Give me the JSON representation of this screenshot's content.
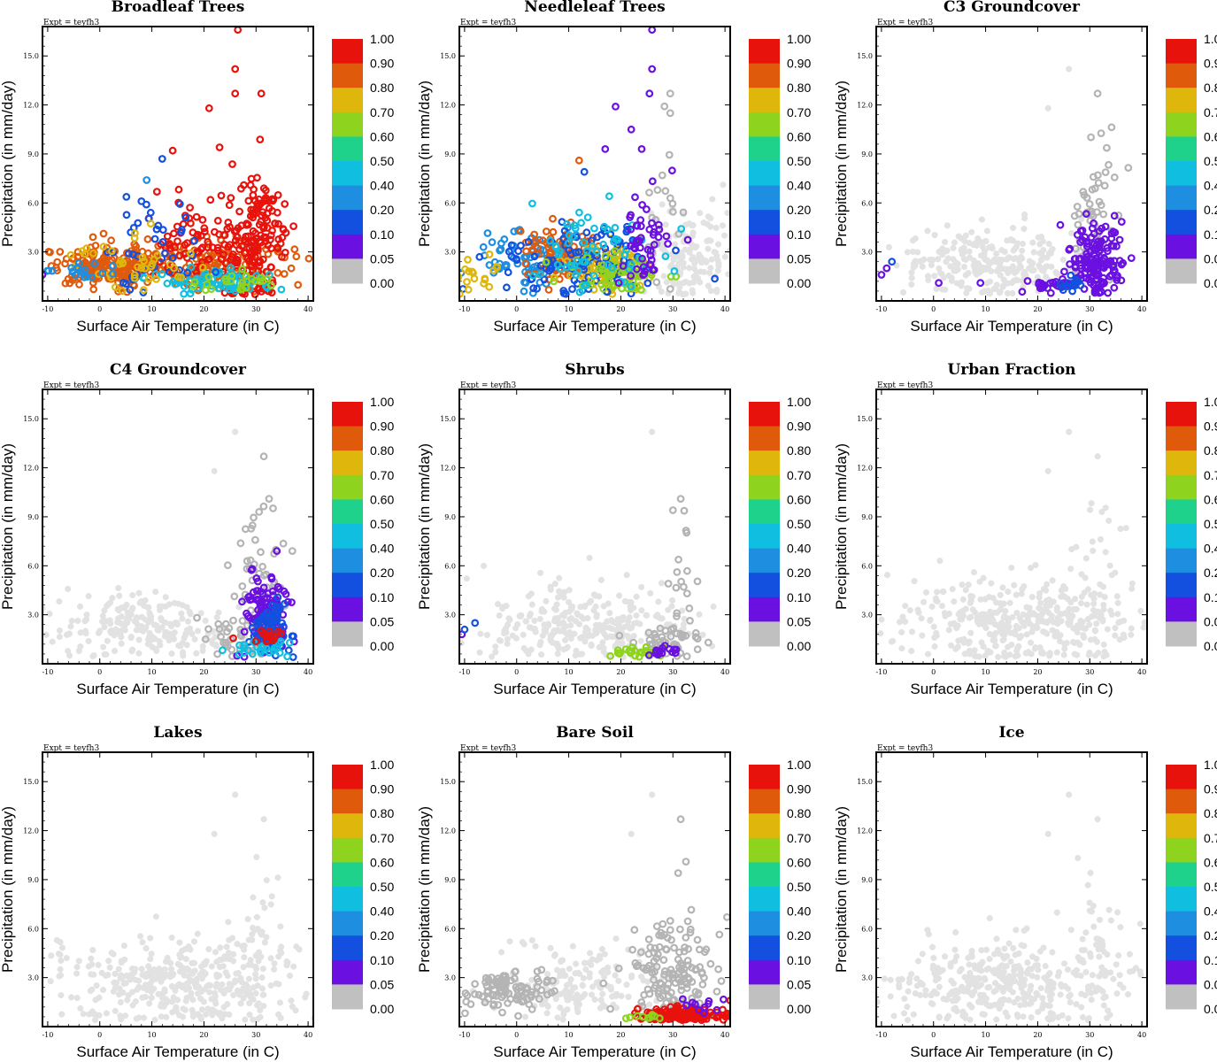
{
  "figure": {
    "expt_label": "Expt = teyfh3",
    "xlabel": "Surface Air Temperature (in C)",
    "ylabel": "Precipitation (in mm/day)",
    "x_ticks": [
      "-10",
      "0",
      "10",
      "20",
      "30",
      "40"
    ],
    "y_ticks": [
      "3.0",
      "6.0",
      "9.0",
      "12.0",
      "15.0"
    ],
    "xlim": [
      -11,
      41
    ],
    "ylim": [
      0,
      16.8
    ],
    "colorbar_labels": [
      "1.00",
      "0.90",
      "0.80",
      "0.70",
      "0.60",
      "0.50",
      "0.40",
      "0.20",
      "0.10",
      "0.05",
      "0.00"
    ],
    "colorbar_colors": [
      "#e8120c",
      "#e05a0c",
      "#dfb70c",
      "#8ed41e",
      "#1ed28c",
      "#10bfe0",
      "#1e8ee0",
      "#1450e0",
      "#6a10e0",
      "#c0c0c0"
    ],
    "zero_color_light": "#e2e2e2",
    "zero_color_dark": "#b4b4b4"
  },
  "chart_data": [
    {
      "type": "scatter",
      "title": "Broadleaf Trees",
      "xlabel": "Surface Air Temperature (in C)",
      "ylabel": "Precipitation (in mm/day)",
      "xlim": [
        -11,
        41
      ],
      "ylim": [
        0,
        16.8
      ],
      "clusters": [
        {
          "cx": 2,
          "cy": 2.1,
          "sx": 6,
          "sy": 0.6,
          "n": 200,
          "color": "#e05a0c"
        },
        {
          "cx": 22,
          "cy": 2.3,
          "sx": 8,
          "sy": 0.9,
          "n": 150,
          "color": "#e05a0c"
        },
        {
          "cx": 30,
          "cy": 3.5,
          "sx": 3,
          "sy": 2.0,
          "n": 180,
          "color": "#e8120c"
        },
        {
          "cx": 17,
          "cy": 3.5,
          "sx": 4,
          "sy": 1.3,
          "n": 70,
          "color": "#e8120c"
        },
        {
          "cx": 22,
          "cy": 1.2,
          "sx": 6,
          "sy": 0.4,
          "n": 70,
          "color": "#10bfe0"
        },
        {
          "cx": 10,
          "cy": 3.2,
          "sx": 5,
          "sy": 1.4,
          "n": 40,
          "color": "#1450e0"
        },
        {
          "cx": 6,
          "cy": 2.2,
          "sx": 6,
          "sy": 0.9,
          "n": 40,
          "color": "#dfb70c"
        },
        {
          "cx": -5,
          "cy": 1.8,
          "sx": 4,
          "sy": 0.3,
          "n": 20,
          "color": "#1e8ee0"
        },
        {
          "cx": 25,
          "cy": 1.0,
          "sx": 5,
          "sy": 0.3,
          "n": 25,
          "color": "#8ed41e"
        }
      ],
      "points": [
        {
          "x": 26.5,
          "y": 16.6,
          "color": "#e8120c"
        },
        {
          "x": 26,
          "y": 14.2,
          "color": "#e8120c"
        },
        {
          "x": 26,
          "y": 12.7,
          "color": "#e8120c"
        },
        {
          "x": 31,
          "y": 12.7,
          "color": "#e8120c"
        },
        {
          "x": 21,
          "y": 11.8,
          "color": "#e8120c"
        },
        {
          "x": 23,
          "y": 9.4,
          "color": "#e8120c"
        },
        {
          "x": 14,
          "y": 9.2,
          "color": "#e8120c"
        },
        {
          "x": 12,
          "y": 8.7,
          "color": "#1450e0"
        },
        {
          "x": 9,
          "y": 7.4,
          "color": "#1e8ee0"
        },
        {
          "x": 8,
          "y": 6.1,
          "color": "#1450e0"
        },
        {
          "x": -11,
          "y": 1.6,
          "color": "#6a10e0"
        }
      ]
    },
    {
      "type": "scatter",
      "title": "Needleleaf Trees",
      "xlabel": "Surface Air Temperature (in C)",
      "ylabel": "Precipitation (in mm/day)",
      "xlim": [
        -11,
        41
      ],
      "ylim": [
        0,
        16.8
      ],
      "clusters": [
        {
          "cx": 33,
          "cy": 2.5,
          "sx": 4,
          "sy": 1.5,
          "n": 150,
          "color": "#e2e2e2"
        },
        {
          "cx": 28,
          "cy": 5.5,
          "sx": 2,
          "sy": 2.5,
          "n": 20,
          "color": "#b4b4b4"
        },
        {
          "cx": 5,
          "cy": 2.5,
          "sx": 6,
          "sy": 1.0,
          "n": 100,
          "color": "#1e8ee0"
        },
        {
          "cx": 8,
          "cy": 2.8,
          "sx": 4,
          "sy": 0.8,
          "n": 80,
          "color": "#e05a0c"
        },
        {
          "cx": 17,
          "cy": 2.0,
          "sx": 4,
          "sy": 0.8,
          "n": 110,
          "color": "#dfb70c"
        },
        {
          "cx": 12,
          "cy": 2.5,
          "sx": 8,
          "sy": 1.2,
          "n": 100,
          "color": "#1450e0"
        },
        {
          "cx": 20,
          "cy": 1.6,
          "sx": 5,
          "sy": 0.7,
          "n": 60,
          "color": "#8ed41e"
        },
        {
          "cx": 15,
          "cy": 3.2,
          "sx": 6,
          "sy": 1.3,
          "n": 60,
          "color": "#10bfe0"
        },
        {
          "cx": 25,
          "cy": 3.5,
          "sx": 3,
          "sy": 1.8,
          "n": 50,
          "color": "#6a10e0"
        },
        {
          "cx": -7,
          "cy": 1.5,
          "sx": 3,
          "sy": 0.5,
          "n": 20,
          "color": "#dfb70c"
        }
      ],
      "points": [
        {
          "x": 26,
          "y": 16.6,
          "color": "#6a10e0"
        },
        {
          "x": 26,
          "y": 14.2,
          "color": "#6a10e0"
        },
        {
          "x": 25.5,
          "y": 12.7,
          "color": "#6a10e0"
        },
        {
          "x": 29.5,
          "y": 12.7,
          "color": "#b4b4b4"
        },
        {
          "x": 29.5,
          "y": 11.5,
          "color": "#b4b4b4"
        },
        {
          "x": 19,
          "y": 11.9,
          "color": "#6a10e0"
        },
        {
          "x": 22,
          "y": 10.5,
          "color": "#6a10e0"
        },
        {
          "x": 24,
          "y": 9.3,
          "color": "#6a10e0"
        },
        {
          "x": 17,
          "y": 9.3,
          "color": "#6a10e0"
        },
        {
          "x": 12,
          "y": 8.6,
          "color": "#e05a0c"
        },
        {
          "x": 13,
          "y": 7.9,
          "color": "#1450e0"
        }
      ]
    },
    {
      "type": "scatter",
      "title": "C3 Groundcover",
      "xlabel": "Surface Air Temperature (in C)",
      "ylabel": "Precipitation (in mm/day)",
      "xlim": [
        -11,
        41
      ],
      "ylim": [
        0,
        16.8
      ],
      "clusters": [
        {
          "cx": 10,
          "cy": 2.3,
          "sx": 10,
          "sy": 1.1,
          "n": 260,
          "color": "#e2e2e2"
        },
        {
          "cx": 31,
          "cy": 5.5,
          "sx": 2.5,
          "sy": 2.5,
          "n": 60,
          "color": "#b4b4b4"
        },
        {
          "cx": 31,
          "cy": 2.5,
          "sx": 2.5,
          "sy": 1.2,
          "n": 150,
          "color": "#6a10e0"
        },
        {
          "cx": 23,
          "cy": 1.0,
          "sx": 3,
          "sy": 0.2,
          "n": 30,
          "color": "#6a10e0"
        },
        {
          "cx": 26,
          "cy": 1.0,
          "sx": 2,
          "sy": 0.2,
          "n": 15,
          "color": "#1450e0"
        }
      ],
      "points": [
        {
          "x": -10,
          "y": 1.6,
          "color": "#6a10e0"
        },
        {
          "x": -9,
          "y": 2.0,
          "color": "#6a10e0"
        },
        {
          "x": -8,
          "y": 2.4,
          "color": "#1450e0"
        },
        {
          "x": 1,
          "y": 1.1,
          "color": "#6a10e0"
        },
        {
          "x": 9,
          "y": 1.1,
          "color": "#6a10e0"
        },
        {
          "x": 26,
          "y": 14.2,
          "color": "#e2e2e2"
        },
        {
          "x": 31.5,
          "y": 12.7,
          "color": "#b4b4b4"
        },
        {
          "x": 22,
          "y": 11.8,
          "color": "#e2e2e2"
        }
      ]
    },
    {
      "type": "scatter",
      "title": "C4 Groundcover",
      "xlabel": "Surface Air Temperature (in C)",
      "ylabel": "Precipitation (in mm/day)",
      "xlim": [
        -11,
        41
      ],
      "ylim": [
        0,
        16.8
      ],
      "clusters": [
        {
          "cx": 8,
          "cy": 2.3,
          "sx": 10,
          "sy": 1.1,
          "n": 230,
          "color": "#e2e2e2"
        },
        {
          "cx": 31,
          "cy": 5.5,
          "sx": 2.5,
          "sy": 2.5,
          "n": 50,
          "color": "#b4b4b4"
        },
        {
          "cx": 28,
          "cy": 1.8,
          "sx": 4,
          "sy": 0.8,
          "n": 50,
          "color": "#b4b4b4"
        },
        {
          "cx": 32,
          "cy": 3.0,
          "sx": 2.2,
          "sy": 1.2,
          "n": 130,
          "color": "#6a10e0"
        },
        {
          "cx": 33,
          "cy": 2.5,
          "sx": 2,
          "sy": 0.9,
          "n": 70,
          "color": "#1450e0"
        },
        {
          "cx": 31,
          "cy": 1.0,
          "sx": 3,
          "sy": 0.3,
          "n": 25,
          "color": "#10bfe0"
        },
        {
          "cx": 33,
          "cy": 1.7,
          "sx": 2,
          "sy": 0.3,
          "n": 15,
          "color": "#e8120c"
        }
      ],
      "points": [
        {
          "x": 26,
          "y": 14.2,
          "color": "#e2e2e2"
        },
        {
          "x": 31.5,
          "y": 12.7,
          "color": "#b4b4b4"
        },
        {
          "x": 22,
          "y": 11.8,
          "color": "#e2e2e2"
        },
        {
          "x": 32.5,
          "y": 10.1,
          "color": "#b4b4b4"
        },
        {
          "x": 34,
          "y": 6.9,
          "color": "#6a10e0"
        }
      ]
    },
    {
      "type": "scatter",
      "title": "Shrubs",
      "xlabel": "Surface Air Temperature (in C)",
      "ylabel": "Precipitation (in mm/day)",
      "xlim": [
        -11,
        41
      ],
      "ylim": [
        0,
        16.8
      ],
      "clusters": [
        {
          "cx": 12,
          "cy": 2.4,
          "sx": 11,
          "sy": 1.2,
          "n": 300,
          "color": "#e2e2e2"
        },
        {
          "cx": 31,
          "cy": 5.5,
          "sx": 2.5,
          "sy": 2.5,
          "n": 20,
          "color": "#b4b4b4"
        },
        {
          "cx": 30,
          "cy": 1.5,
          "sx": 3.5,
          "sy": 0.6,
          "n": 40,
          "color": "#b4b4b4"
        },
        {
          "cx": 23,
          "cy": 0.7,
          "sx": 3,
          "sy": 0.15,
          "n": 25,
          "color": "#8ed41e"
        },
        {
          "cx": 27,
          "cy": 0.8,
          "sx": 2,
          "sy": 0.2,
          "n": 15,
          "color": "#6a10e0"
        }
      ],
      "points": [
        {
          "x": -10.5,
          "y": 1.8,
          "color": "#6a10e0"
        },
        {
          "x": -10,
          "y": 2.1,
          "color": "#1450e0"
        },
        {
          "x": -8,
          "y": 2.5,
          "color": "#1450e0"
        },
        {
          "x": 26,
          "y": 14.2,
          "color": "#e2e2e2"
        },
        {
          "x": 31.5,
          "y": 10.1,
          "color": "#b4b4b4"
        },
        {
          "x": 30,
          "y": 9.4,
          "color": "#b4b4b4"
        }
      ]
    },
    {
      "type": "scatter",
      "title": "Urban Fraction",
      "xlabel": "Surface Air Temperature (in C)",
      "ylabel": "Precipitation (in mm/day)",
      "xlim": [
        -11,
        41
      ],
      "ylim": [
        0,
        16.8
      ],
      "clusters": [
        {
          "cx": 15,
          "cy": 2.6,
          "sx": 12,
          "sy": 1.3,
          "n": 380,
          "color": "#e2e2e2"
        },
        {
          "cx": 31,
          "cy": 5.0,
          "sx": 2.5,
          "sy": 2.5,
          "n": 40,
          "color": "#e2e2e2"
        }
      ],
      "points": [
        {
          "x": 26,
          "y": 14.2,
          "color": "#e2e2e2"
        },
        {
          "x": 31.5,
          "y": 12.7,
          "color": "#e2e2e2"
        },
        {
          "x": 22,
          "y": 11.8,
          "color": "#e2e2e2"
        }
      ]
    },
    {
      "type": "scatter",
      "title": "Lakes",
      "xlabel": "Surface Air Temperature (in C)",
      "ylabel": "Precipitation (in mm/day)",
      "xlim": [
        -11,
        41
      ],
      "ylim": [
        0,
        16.8
      ],
      "clusters": [
        {
          "cx": 15,
          "cy": 2.6,
          "sx": 12,
          "sy": 1.3,
          "n": 380,
          "color": "#e2e2e2"
        },
        {
          "cx": 31,
          "cy": 5.0,
          "sx": 2.5,
          "sy": 2.5,
          "n": 40,
          "color": "#e2e2e2"
        }
      ],
      "points": [
        {
          "x": 26,
          "y": 14.2,
          "color": "#e2e2e2"
        },
        {
          "x": 31.5,
          "y": 12.7,
          "color": "#e2e2e2"
        },
        {
          "x": 22,
          "y": 11.8,
          "color": "#e2e2e2"
        }
      ]
    },
    {
      "type": "scatter",
      "title": "Bare Soil",
      "xlabel": "Surface Air Temperature (in C)",
      "ylabel": "Precipitation (in mm/day)",
      "xlim": [
        -11,
        41
      ],
      "ylim": [
        0,
        16.8
      ],
      "clusters": [
        {
          "cx": 12,
          "cy": 2.5,
          "sx": 9,
          "sy": 1.1,
          "n": 180,
          "color": "#e2e2e2"
        },
        {
          "cx": -3,
          "cy": 2.2,
          "sx": 5,
          "sy": 0.6,
          "n": 110,
          "color": "#b4b4b4"
        },
        {
          "cx": 30,
          "cy": 3.0,
          "sx": 4,
          "sy": 1.8,
          "n": 160,
          "color": "#b4b4b4"
        },
        {
          "cx": 32,
          "cy": 0.6,
          "sx": 4.5,
          "sy": 0.3,
          "n": 150,
          "color": "#e8120c"
        },
        {
          "cx": 24,
          "cy": 0.5,
          "sx": 1.5,
          "sy": 0.15,
          "n": 10,
          "color": "#8ed41e"
        },
        {
          "cx": 35,
          "cy": 1.4,
          "sx": 3,
          "sy": 0.3,
          "n": 12,
          "color": "#6a10e0"
        }
      ],
      "points": [
        {
          "x": 26,
          "y": 14.2,
          "color": "#e2e2e2"
        },
        {
          "x": 31.5,
          "y": 12.7,
          "color": "#b4b4b4"
        },
        {
          "x": 22,
          "y": 11.8,
          "color": "#e2e2e2"
        },
        {
          "x": 32.5,
          "y": 10.1,
          "color": "#b4b4b4"
        },
        {
          "x": 31,
          "y": 9.4,
          "color": "#b4b4b4"
        },
        {
          "x": 41,
          "y": 1.6,
          "color": "#e8120c"
        }
      ]
    },
    {
      "type": "scatter",
      "title": "Ice",
      "xlabel": "Surface Air Temperature (in C)",
      "ylabel": "Precipitation (in mm/day)",
      "xlim": [
        -11,
        41
      ],
      "ylim": [
        0,
        16.8
      ],
      "clusters": [
        {
          "cx": 15,
          "cy": 2.6,
          "sx": 12,
          "sy": 1.3,
          "n": 380,
          "color": "#e2e2e2"
        },
        {
          "cx": 31,
          "cy": 5.0,
          "sx": 2.5,
          "sy": 2.5,
          "n": 40,
          "color": "#e2e2e2"
        }
      ],
      "points": [
        {
          "x": 26,
          "y": 14.2,
          "color": "#e2e2e2"
        },
        {
          "x": 31.5,
          "y": 12.7,
          "color": "#e2e2e2"
        },
        {
          "x": 22,
          "y": 11.8,
          "color": "#e2e2e2"
        }
      ]
    }
  ]
}
